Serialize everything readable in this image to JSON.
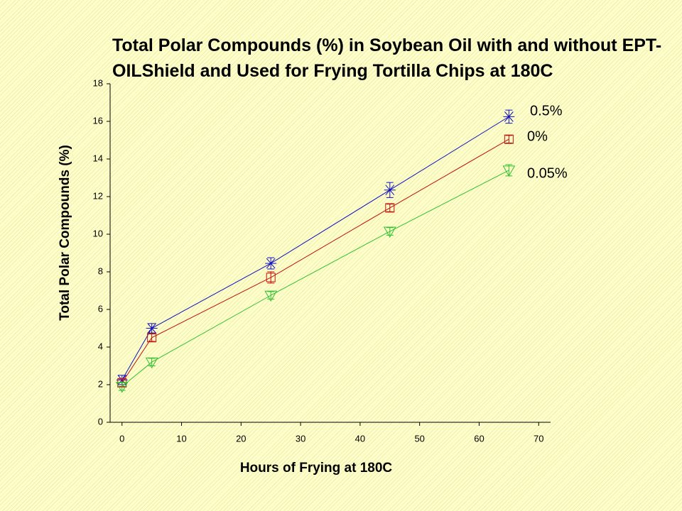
{
  "chart_data": {
    "type": "line",
    "title": "Total Polar Compounds (%) in Soybean Oil with and without EPT-OILShield and Used for Frying Tortilla Chips at 180C",
    "x_label": "Hours of Frying at 180C",
    "y_label": "Total Polar Compounds (%)",
    "x": [
      0,
      5,
      25,
      45,
      65
    ],
    "series": [
      {
        "name": "0.5%",
        "color": "#1010c0",
        "marker": "asterisk",
        "values": [
          2.25,
          5.0,
          8.45,
          12.35,
          16.25
        ],
        "errors": [
          0.25,
          0.25,
          0.3,
          0.4,
          0.35
        ]
      },
      {
        "name": "0%",
        "color": "#c01010",
        "marker": "square",
        "values": [
          2.1,
          4.5,
          7.7,
          11.4,
          15.05
        ],
        "errors": [
          0.2,
          0.2,
          0.3,
          0.2,
          0.2
        ]
      },
      {
        "name": "0.05%",
        "color": "#30c030",
        "marker": "triangle-down",
        "values": [
          1.9,
          3.2,
          6.75,
          10.15,
          13.4
        ],
        "errors": [
          0.2,
          0.2,
          0.2,
          0.2,
          0.3
        ]
      }
    ],
    "xlim": [
      -2,
      72
    ],
    "ylim": [
      0,
      18
    ],
    "xticks": [
      0,
      10,
      20,
      30,
      40,
      50,
      60,
      70
    ],
    "yticks": [
      0,
      2,
      4,
      6,
      8,
      10,
      12,
      14,
      16,
      18
    ],
    "grid": false
  }
}
